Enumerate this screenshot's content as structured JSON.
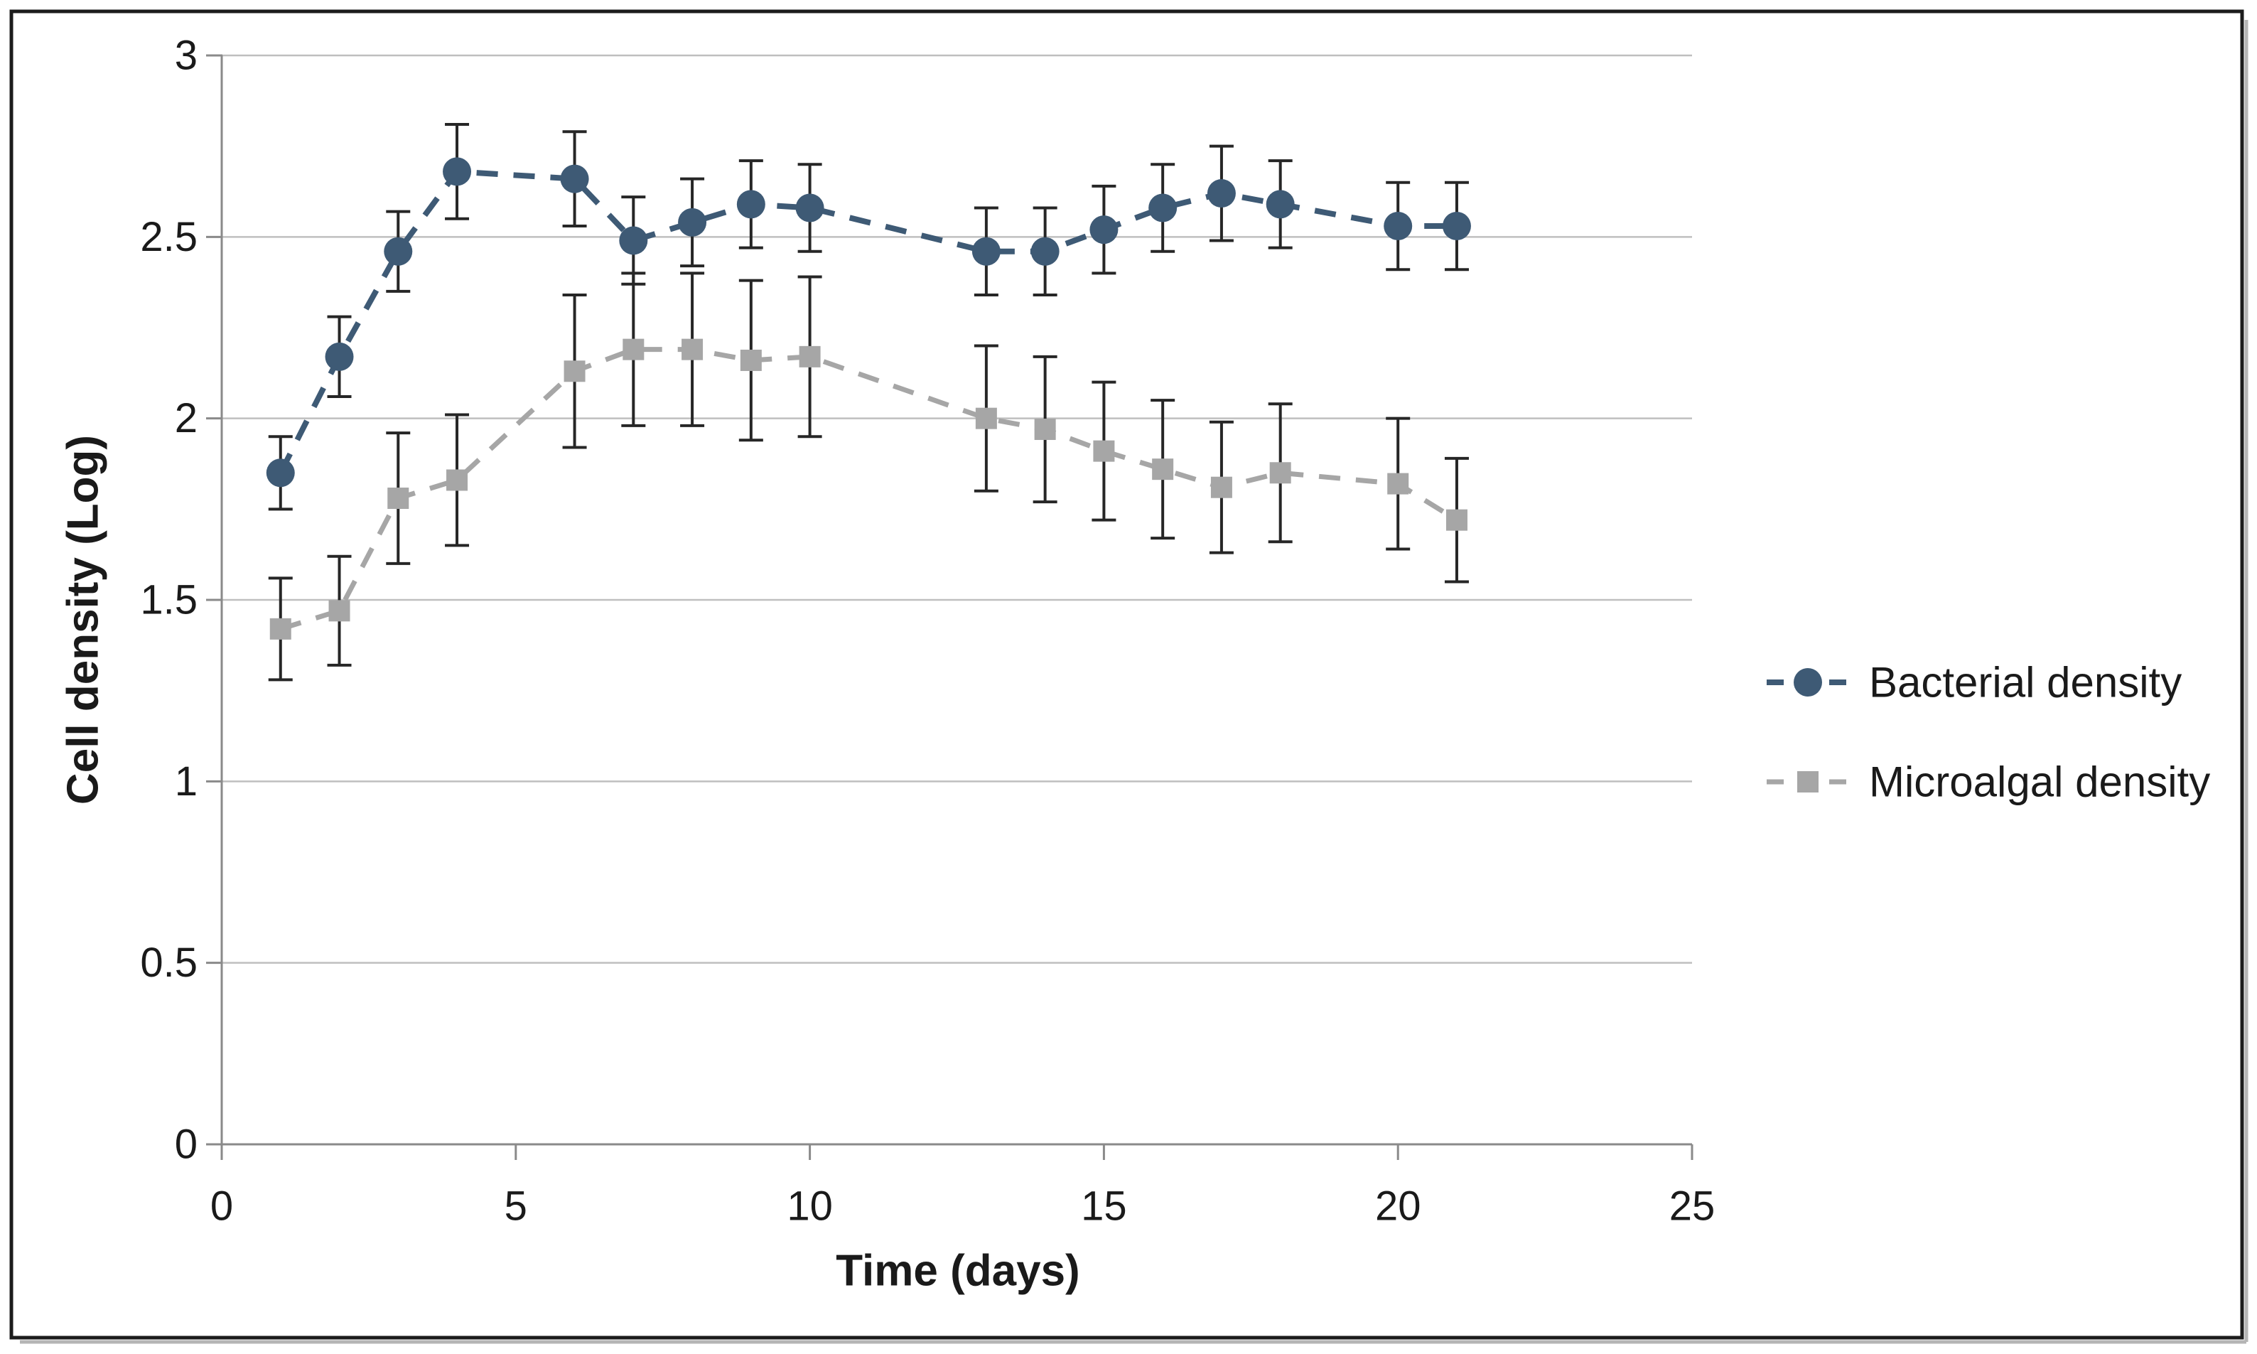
{
  "chart_data": {
    "type": "line",
    "title": "",
    "xlabel": "Time (days)",
    "ylabel": "Cell density (Log)",
    "xlim": [
      0,
      25
    ],
    "ylim": [
      0,
      3
    ],
    "x_ticks": [
      0,
      5,
      10,
      15,
      20,
      25
    ],
    "y_ticks": [
      3,
      2.5,
      2,
      1.5,
      1,
      0.5,
      0
    ],
    "grid": "horizontal",
    "legend_position": "right",
    "x": [
      1,
      2,
      3,
      4,
      6,
      7,
      8,
      9,
      10,
      13,
      14,
      15,
      16,
      17,
      18,
      20,
      21
    ],
    "series": [
      {
        "name": "Bacterial density",
        "color": "#3E5A75",
        "marker": "circle",
        "line_style": "dashed",
        "values": [
          1.85,
          2.17,
          2.46,
          2.68,
          2.66,
          2.49,
          2.54,
          2.59,
          2.58,
          2.46,
          2.46,
          2.52,
          2.58,
          2.62,
          2.59,
          2.53,
          2.53
        ],
        "errors": [
          0.1,
          0.11,
          0.11,
          0.13,
          0.13,
          0.12,
          0.12,
          0.12,
          0.12,
          0.12,
          0.12,
          0.12,
          0.12,
          0.13,
          0.12,
          0.12,
          0.12
        ]
      },
      {
        "name": "Microalgal density",
        "color": "#A6A6A6",
        "marker": "square",
        "line_style": "dashed",
        "values": [
          1.42,
          1.47,
          1.78,
          1.83,
          2.13,
          2.19,
          2.19,
          2.16,
          2.17,
          2.0,
          1.97,
          1.91,
          1.86,
          1.81,
          1.85,
          1.82,
          1.72
        ],
        "errors": [
          0.14,
          0.15,
          0.18,
          0.18,
          0.21,
          0.21,
          0.21,
          0.22,
          0.22,
          0.2,
          0.2,
          0.19,
          0.19,
          0.18,
          0.19,
          0.18,
          0.17
        ]
      }
    ],
    "error_bar_color": "#262626",
    "grid_color": "#BFBFBF",
    "axis_color": "#8A8A8A",
    "border_color": "#1C1C1C"
  }
}
